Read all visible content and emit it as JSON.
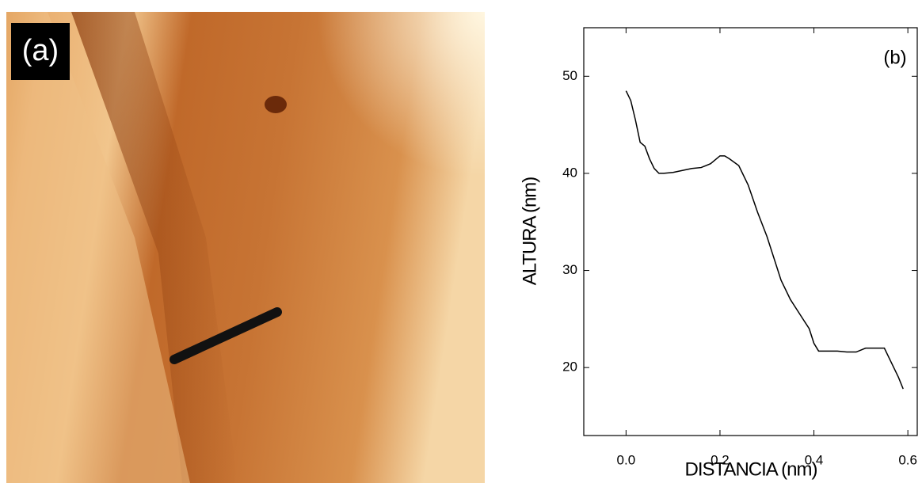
{
  "image_panel": {
    "label": "(a)"
  },
  "chart_data": {
    "type": "line",
    "annotation": "(b)",
    "x_label": "DISTANCIA (nm)",
    "y_label": "ALTURA (nm)",
    "x": [
      0.0,
      0.01,
      0.02,
      0.03,
      0.04,
      0.05,
      0.06,
      0.07,
      0.08,
      0.1,
      0.12,
      0.14,
      0.16,
      0.18,
      0.2,
      0.21,
      0.22,
      0.24,
      0.26,
      0.28,
      0.3,
      0.32,
      0.33,
      0.35,
      0.37,
      0.39,
      0.4,
      0.41,
      0.43,
      0.45,
      0.47,
      0.49,
      0.51,
      0.53,
      0.55,
      0.56,
      0.57,
      0.58,
      0.59
    ],
    "series": [
      {
        "color": "#000000",
        "values": [
          48.5,
          47.5,
          45.5,
          43.2,
          42.8,
          41.5,
          40.5,
          40.0,
          40.0,
          40.1,
          40.3,
          40.5,
          40.6,
          41.0,
          41.8,
          41.8,
          41.5,
          40.8,
          38.8,
          36.0,
          33.5,
          30.5,
          29.0,
          27.0,
          25.5,
          24.0,
          22.5,
          21.7,
          21.7,
          21.7,
          21.6,
          21.6,
          22.0,
          22.0,
          22.0,
          21.0,
          20.0,
          19.0,
          17.8
        ]
      }
    ],
    "xlim": [
      -0.09,
      0.62
    ],
    "ylim": [
      13,
      55
    ],
    "xticks": [
      {
        "value": 0,
        "label": "0.0"
      },
      0.2,
      0.4,
      0.6
    ],
    "yticks": [
      20,
      30,
      40,
      50
    ]
  }
}
